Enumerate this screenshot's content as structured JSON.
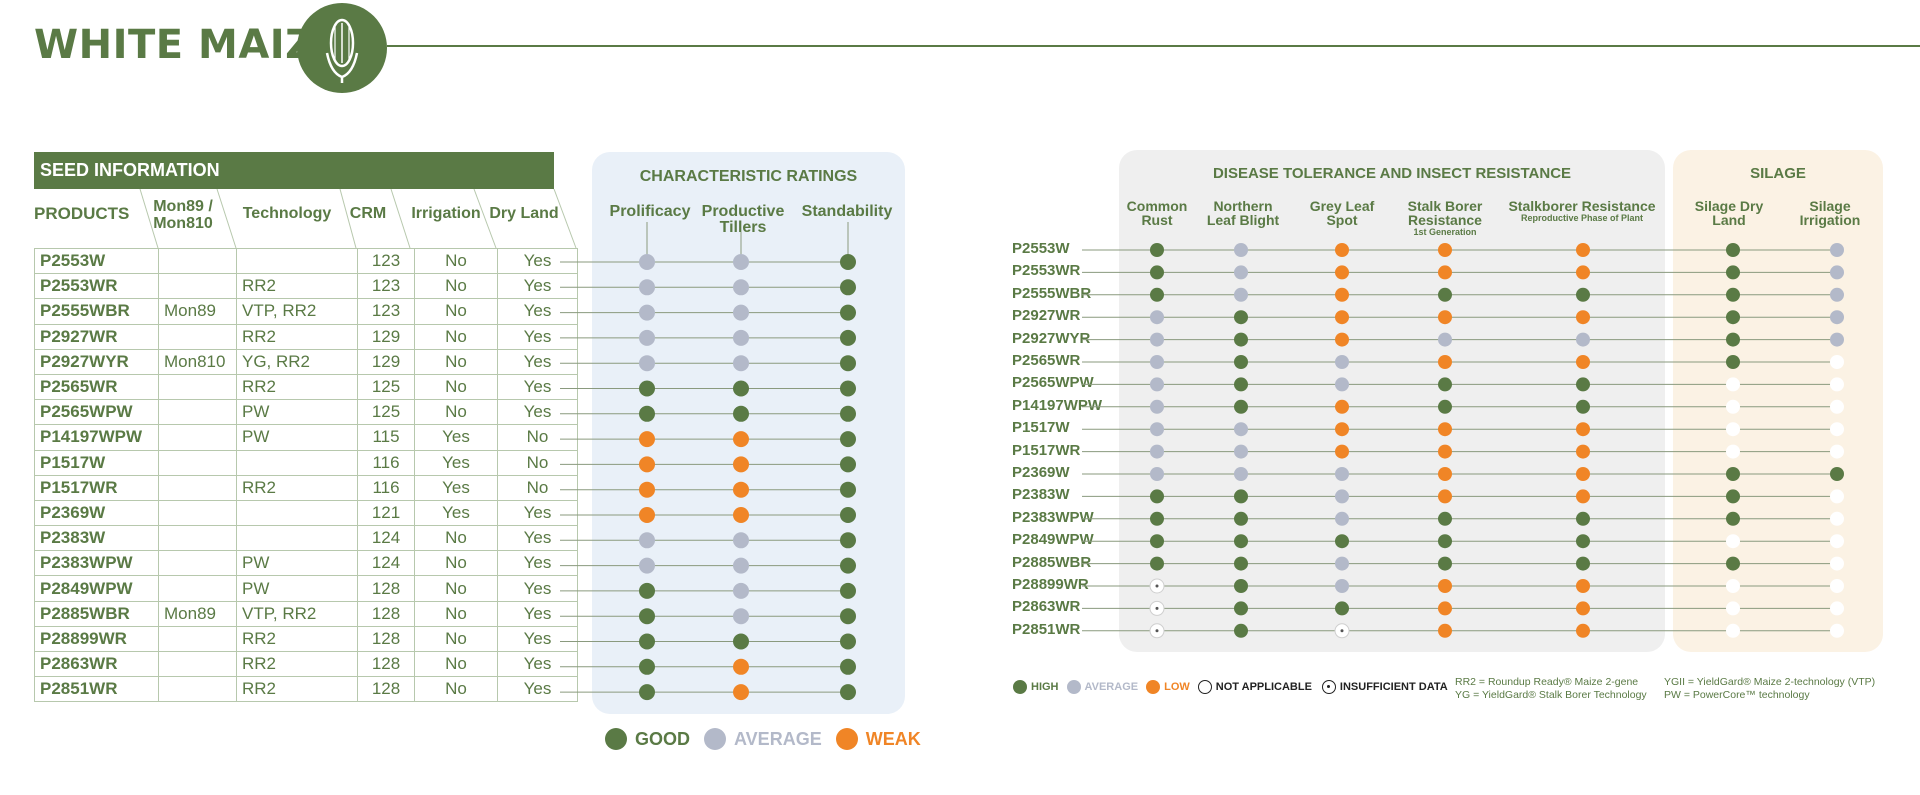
{
  "page_title": "WHITE MAIZE",
  "colors": {
    "good": "#5a7a45",
    "average": "#b3b9c9",
    "weak": "#f08526",
    "na": "#ffffff"
  },
  "seed": {
    "banner": "SEED INFORMATION",
    "headers": {
      "products": "PRODUCTS",
      "mon": "Mon89 / Mon810",
      "tech": "Technology",
      "crm": "CRM",
      "irrigation": "Irrigation",
      "dryland": "Dry Land"
    },
    "rows": [
      {
        "product": "P2553W",
        "mon": "",
        "tech": "",
        "crm": "123",
        "irr": "No",
        "dry": "Yes"
      },
      {
        "product": "P2553WR",
        "mon": "",
        "tech": "RR2",
        "crm": "123",
        "irr": "No",
        "dry": "Yes"
      },
      {
        "product": "P2555WBR",
        "mon": "Mon89",
        "tech": "VTP, RR2",
        "crm": "123",
        "irr": "No",
        "dry": "Yes"
      },
      {
        "product": "P2927WR",
        "mon": "",
        "tech": "RR2",
        "crm": "129",
        "irr": "No",
        "dry": "Yes"
      },
      {
        "product": "P2927WYR",
        "mon": "Mon810",
        "tech": "YG, RR2",
        "crm": "129",
        "irr": "No",
        "dry": "Yes"
      },
      {
        "product": "P2565WR",
        "mon": "",
        "tech": "RR2",
        "crm": "125",
        "irr": "No",
        "dry": "Yes"
      },
      {
        "product": "P2565WPW",
        "mon": "",
        "tech": "PW",
        "crm": "125",
        "irr": "No",
        "dry": "Yes"
      },
      {
        "product": "P14197WPW",
        "mon": "",
        "tech": "PW",
        "crm": "115",
        "irr": "Yes",
        "dry": "No"
      },
      {
        "product": "P1517W",
        "mon": "",
        "tech": "",
        "crm": "116",
        "irr": "Yes",
        "dry": "No"
      },
      {
        "product": "P1517WR",
        "mon": "",
        "tech": "RR2",
        "crm": "116",
        "irr": "Yes",
        "dry": "No"
      },
      {
        "product": "P2369W",
        "mon": "",
        "tech": "",
        "crm": "121",
        "irr": "Yes",
        "dry": "Yes"
      },
      {
        "product": "P2383W",
        "mon": "",
        "tech": "",
        "crm": "124",
        "irr": "No",
        "dry": "Yes"
      },
      {
        "product": "P2383WPW",
        "mon": "",
        "tech": "PW",
        "crm": "124",
        "irr": "No",
        "dry": "Yes"
      },
      {
        "product": "P2849WPW",
        "mon": "",
        "tech": "PW",
        "crm": "128",
        "irr": "No",
        "dry": "Yes"
      },
      {
        "product": "P2885WBR",
        "mon": "Mon89",
        "tech": "VTP, RR2",
        "crm": "128",
        "irr": "No",
        "dry": "Yes"
      },
      {
        "product": "P28899WR",
        "mon": "",
        "tech": "RR2",
        "crm": "128",
        "irr": "No",
        "dry": "Yes"
      },
      {
        "product": "P2863WR",
        "mon": "",
        "tech": "RR2",
        "crm": "128",
        "irr": "No",
        "dry": "Yes"
      },
      {
        "product": "P2851WR",
        "mon": "",
        "tech": "RR2",
        "crm": "128",
        "irr": "No",
        "dry": "Yes"
      }
    ]
  },
  "char": {
    "title": "CHARACTERISTIC RATINGS",
    "headers": {
      "prolificacy": "Prolificacy",
      "tillers": "Productive Tillers",
      "standability": "Standability"
    },
    "ratings": [
      [
        "A",
        "A",
        "G"
      ],
      [
        "A",
        "A",
        "G"
      ],
      [
        "A",
        "A",
        "G"
      ],
      [
        "A",
        "A",
        "G"
      ],
      [
        "A",
        "A",
        "G"
      ],
      [
        "G",
        "G",
        "G"
      ],
      [
        "G",
        "G",
        "G"
      ],
      [
        "W",
        "W",
        "G"
      ],
      [
        "W",
        "W",
        "G"
      ],
      [
        "W",
        "W",
        "G"
      ],
      [
        "W",
        "W",
        "G"
      ],
      [
        "A",
        "A",
        "G"
      ],
      [
        "A",
        "A",
        "G"
      ],
      [
        "G",
        "A",
        "G"
      ],
      [
        "G",
        "A",
        "G"
      ],
      [
        "G",
        "G",
        "G"
      ],
      [
        "G",
        "W",
        "G"
      ],
      [
        "G",
        "W",
        "G"
      ]
    ],
    "legend": {
      "good": "GOOD",
      "average": "AVERAGE",
      "weak": "WEAK"
    }
  },
  "disease": {
    "title": "DISEASE TOLERANCE AND INSECT RESISTANCE",
    "silage_title": "SILAGE",
    "headers": {
      "common_rust": "Common Rust",
      "nlb": "Northern Leaf Blight",
      "gls": "Grey Leaf Spot",
      "sbr": "Stalk Borer Resistance",
      "sbr_sub": "1st Generation",
      "sbrr": "Stalkborer Resistance",
      "sbrr_sub": "Reproductive Phase of Plant",
      "sil_dry": "Silage Dry Land",
      "sil_irr": "Silage Irrigation"
    },
    "products": [
      "P2553W",
      "P2553WR",
      "P2555WBR",
      "P2927WR",
      "P2927WYR",
      "P2565WR",
      "P2565WPW",
      "P14197WPW",
      "P1517W",
      "P1517WR",
      "P2369W",
      "P2383W",
      "P2383WPW",
      "P2849WPW",
      "P2885WBR",
      "P28899WR",
      "P2863WR",
      "P2851WR"
    ],
    "ratings": [
      [
        "H",
        "A",
        "L",
        "L",
        "L",
        "H",
        "A"
      ],
      [
        "H",
        "A",
        "L",
        "L",
        "L",
        "H",
        "A"
      ],
      [
        "H",
        "A",
        "L",
        "H",
        "H",
        "H",
        "A"
      ],
      [
        "A",
        "H",
        "L",
        "L",
        "L",
        "H",
        "A"
      ],
      [
        "A",
        "H",
        "L",
        "A",
        "A",
        "H",
        "A"
      ],
      [
        "A",
        "H",
        "A",
        "L",
        "L",
        "H",
        "N"
      ],
      [
        "A",
        "H",
        "A",
        "H",
        "H",
        "N",
        "N"
      ],
      [
        "A",
        "H",
        "L",
        "H",
        "H",
        "N",
        "N"
      ],
      [
        "A",
        "A",
        "L",
        "L",
        "L",
        "N",
        "N"
      ],
      [
        "A",
        "A",
        "L",
        "L",
        "L",
        "N",
        "N"
      ],
      [
        "A",
        "A",
        "A",
        "L",
        "L",
        "H",
        "H"
      ],
      [
        "H",
        "H",
        "A",
        "L",
        "L",
        "H",
        "N"
      ],
      [
        "H",
        "H",
        "A",
        "H",
        "H",
        "H",
        "N"
      ],
      [
        "H",
        "H",
        "H",
        "H",
        "H",
        "N",
        "N"
      ],
      [
        "H",
        "H",
        "A",
        "H",
        "H",
        "H",
        "N"
      ],
      [
        "I",
        "H",
        "A",
        "L",
        "L",
        "N",
        "N"
      ],
      [
        "I",
        "H",
        "H",
        "L",
        "L",
        "N",
        "N"
      ],
      [
        "I",
        "H",
        "I",
        "L",
        "L",
        "N",
        "N"
      ]
    ],
    "legend": {
      "high": "HIGH",
      "average": "AVERAGE",
      "low": "LOW",
      "na": "NOT APPLICABLE",
      "insufficient": "INSUFFICIENT DATA"
    },
    "notes": {
      "rr2": "RR2 = Roundup Ready® Maize 2-gene",
      "yg": "YG = YieldGard® Stalk Borer Technology",
      "ygii": "YGII = YieldGard® Maize 2-technology (VTP)",
      "pw": "PW = PowerCore™ technology"
    }
  }
}
